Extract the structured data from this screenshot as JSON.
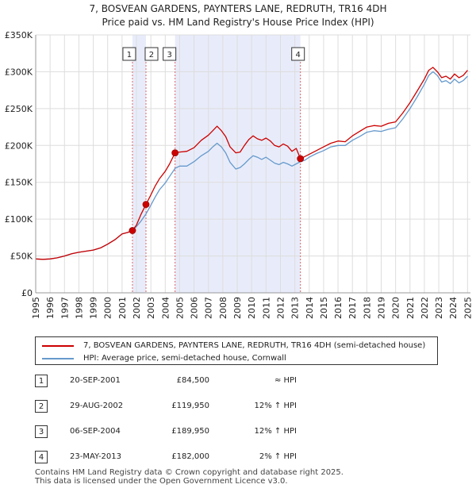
{
  "chart_data": {
    "type": "line",
    "title": "7, BOSVEAN GARDENS, PAYNTERS LANE, REDRUTH, TR16 4DH",
    "subtitle": "Price paid vs. HM Land Registry's House Price Index (HPI)",
    "xlabel": "",
    "ylabel": "",
    "xlim": [
      1995,
      2025.2
    ],
    "ylim": [
      0,
      350000
    ],
    "y_ticks": [
      0,
      50000,
      100000,
      150000,
      200000,
      250000,
      300000,
      350000
    ],
    "y_tick_labels": [
      "£0",
      "£50K",
      "£100K",
      "£150K",
      "£200K",
      "£250K",
      "£300K",
      "£350K"
    ],
    "x_ticks": [
      1995,
      1996,
      1997,
      1998,
      1999,
      2000,
      2001,
      2002,
      2003,
      2004,
      2005,
      2006,
      2007,
      2008,
      2009,
      2010,
      2011,
      2012,
      2013,
      2014,
      2015,
      2016,
      2017,
      2018,
      2019,
      2020,
      2021,
      2022,
      2023,
      2024,
      2025
    ],
    "x_tick_labels": [
      "1995",
      "1996",
      "1997",
      "1998",
      "1999",
      "2000",
      "2001",
      "2002",
      "2003",
      "2004",
      "2005",
      "2006",
      "2007",
      "2008",
      "2009",
      "2010",
      "2011",
      "2012",
      "2013",
      "2014",
      "2015",
      "2016",
      "2017",
      "2018",
      "2019",
      "2020",
      "2021",
      "2022",
      "2023",
      "2024",
      "2025"
    ],
    "grid": true,
    "series": [
      {
        "name": "7, BOSVEAN GARDENS, PAYNTERS LANE, REDRUTH, TR16 4DH (semi-detached house)",
        "color": "#cc0000",
        "x": [
          1995.0,
          1995.5,
          1996.0,
          1996.5,
          1997.0,
          1997.5,
          1998.0,
          1998.5,
          1999.0,
          1999.5,
          2000.0,
          2000.5,
          2001.0,
          2001.4,
          2001.72,
          2002.0,
          2002.3,
          2002.66,
          2003.0,
          2003.3,
          2003.6,
          2004.0,
          2004.3,
          2004.68,
          2005.0,
          2005.5,
          2006.0,
          2006.5,
          2007.0,
          2007.3,
          2007.6,
          2007.9,
          2008.2,
          2008.5,
          2008.9,
          2009.2,
          2009.5,
          2009.8,
          2010.1,
          2010.4,
          2010.7,
          2011.0,
          2011.3,
          2011.6,
          2011.9,
          2012.2,
          2012.5,
          2012.8,
          2013.1,
          2013.39,
          2013.7,
          2014.0,
          2014.5,
          2015.0,
          2015.5,
          2016.0,
          2016.5,
          2017.0,
          2017.5,
          2018.0,
          2018.5,
          2019.0,
          2019.5,
          2020.0,
          2020.5,
          2021.0,
          2021.5,
          2022.0,
          2022.3,
          2022.6,
          2022.9,
          2023.2,
          2023.5,
          2023.8,
          2024.1,
          2024.4,
          2024.7,
          2025.0
        ],
        "y": [
          46000,
          45500,
          46000,
          47500,
          50000,
          53000,
          55000,
          56500,
          58000,
          61000,
          66000,
          72000,
          80000,
          82000,
          84500,
          92000,
          106000,
          119950,
          133000,
          145000,
          155000,
          165000,
          175000,
          189950,
          191000,
          192000,
          197000,
          207000,
          214000,
          220000,
          226000,
          220000,
          212000,
          198000,
          190000,
          191000,
          200000,
          208000,
          213000,
          209000,
          207000,
          210000,
          206000,
          200000,
          198000,
          202000,
          199000,
          192000,
          196000,
          182000,
          185000,
          188000,
          193000,
          198000,
          203000,
          206000,
          205000,
          213000,
          219000,
          225000,
          227000,
          226000,
          230000,
          232000,
          244000,
          258000,
          274000,
          290000,
          302000,
          306000,
          300000,
          292000,
          294000,
          290000,
          297000,
          292000,
          295000,
          302000
        ]
      },
      {
        "name": "HPI: Average price, semi-detached house, Cornwall",
        "color": "#6699cc",
        "x": [
          1995.0,
          1995.5,
          1996.0,
          1996.5,
          1997.0,
          1997.5,
          1998.0,
          1998.5,
          1999.0,
          1999.5,
          2000.0,
          2000.5,
          2001.0,
          2001.4,
          2001.72,
          2002.0,
          2002.3,
          2002.66,
          2003.0,
          2003.3,
          2003.6,
          2004.0,
          2004.3,
          2004.68,
          2005.0,
          2005.5,
          2006.0,
          2006.5,
          2007.0,
          2007.3,
          2007.6,
          2007.9,
          2008.2,
          2008.5,
          2008.9,
          2009.2,
          2009.5,
          2009.8,
          2010.1,
          2010.4,
          2010.7,
          2011.0,
          2011.3,
          2011.6,
          2011.9,
          2012.2,
          2012.5,
          2012.8,
          2013.1,
          2013.39,
          2013.7,
          2014.0,
          2014.5,
          2015.0,
          2015.5,
          2016.0,
          2016.5,
          2017.0,
          2017.5,
          2018.0,
          2018.5,
          2019.0,
          2019.5,
          2020.0,
          2020.5,
          2021.0,
          2021.5,
          2022.0,
          2022.3,
          2022.6,
          2022.9,
          2023.2,
          2023.5,
          2023.8,
          2024.1,
          2024.4,
          2024.7,
          2025.0
        ],
        "y": [
          46000,
          45500,
          46000,
          47500,
          50000,
          53000,
          55000,
          56500,
          58000,
          61000,
          66000,
          72000,
          80000,
          82000,
          84500,
          90000,
          97000,
          107000,
          119000,
          130000,
          140000,
          149000,
          158000,
          169000,
          172000,
          172000,
          178000,
          186000,
          192000,
          198000,
          203000,
          198000,
          190000,
          177000,
          168000,
          170000,
          175000,
          181000,
          186000,
          184000,
          181000,
          184000,
          180000,
          176000,
          174000,
          177000,
          175000,
          172000,
          175000,
          178000,
          180000,
          184000,
          189000,
          193000,
          198000,
          200000,
          200000,
          207000,
          212000,
          218000,
          220000,
          219000,
          222000,
          224000,
          236000,
          250000,
          266000,
          283000,
          295000,
          300000,
          295000,
          286000,
          288000,
          284000,
          290000,
          285000,
          288000,
          294000
        ]
      }
    ],
    "sales": [
      {
        "n": "1",
        "x": 2001.72,
        "y": 84500,
        "date": "20-SEP-2001",
        "price": "£84,500",
        "hpi": "≈ HPI"
      },
      {
        "n": "2",
        "x": 2002.66,
        "y": 119950,
        "date": "29-AUG-2002",
        "price": "£119,950",
        "hpi": "12% ↑ HPI"
      },
      {
        "n": "3",
        "x": 2004.68,
        "y": 189950,
        "date": "06-SEP-2004",
        "price": "£189,950",
        "hpi": "12% ↑ HPI"
      },
      {
        "n": "4",
        "x": 2013.39,
        "y": 182000,
        "date": "23-MAY-2013",
        "price": "£182,000",
        "hpi": "2% ↑ HPI"
      }
    ],
    "shaded_ranges": [
      [
        2001.72,
        2002.66
      ],
      [
        2004.68,
        2013.39
      ]
    ],
    "colors": {
      "shade": "#e8ecfa",
      "grid": "#dddddd",
      "marker_line": "#dd6666"
    }
  },
  "legend": {
    "property_label": "7, BOSVEAN GARDENS, PAYNTERS LANE, REDRUTH, TR16 4DH (semi-detached house)",
    "hpi_label": "HPI: Average price, semi-detached house, Cornwall"
  },
  "footer": {
    "line1": "Contains HM Land Registry data © Crown copyright and database right 2025.",
    "line2": "This data is licensed under the Open Government Licence v3.0."
  }
}
